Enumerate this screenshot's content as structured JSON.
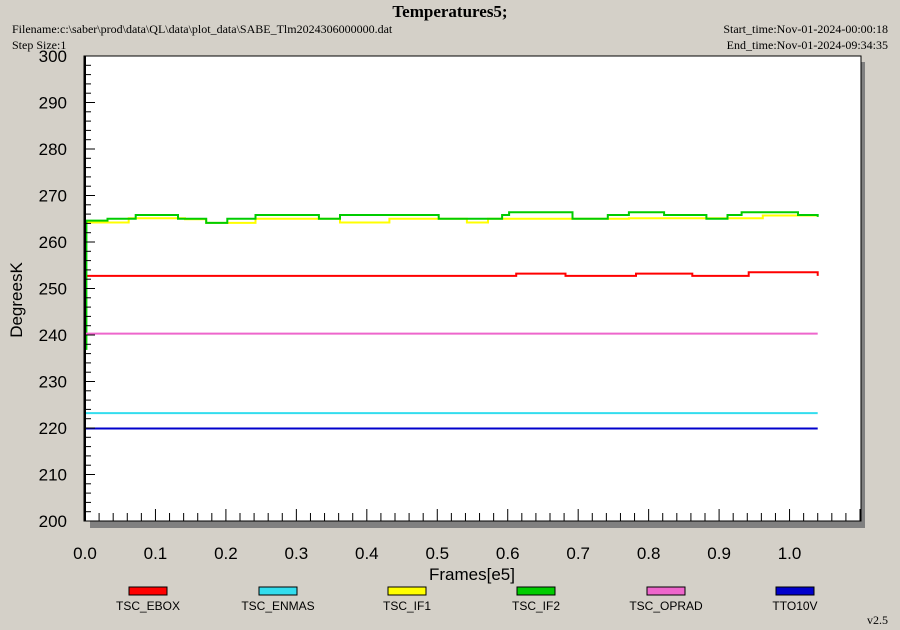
{
  "header": {
    "title": "Temperatures5;",
    "filename": "Filename:c:\\saber\\prod\\data\\QL\\data\\plot_data\\SABE_Tlm2024306000000.dat",
    "step_size": "Step Size:1",
    "start_time": "Start_time:Nov-01-2024-00:00:18",
    "end_time": "End_time:Nov-01-2024-09:34:35"
  },
  "version": "v2.5",
  "chart_data": {
    "type": "line",
    "title": "Temperatures5;",
    "xlabel": "Frames[e5]",
    "ylabel": "DegreesK",
    "xlim": [
      0.0,
      1.1
    ],
    "ylim": [
      200,
      300
    ],
    "xticks": [
      "0.0",
      "0.1",
      "0.2",
      "0.3",
      "0.4",
      "0.5",
      "0.6",
      "0.7",
      "0.8",
      "0.9",
      "1.0"
    ],
    "yticks": [
      "200",
      "210",
      "220",
      "230",
      "240",
      "250",
      "260",
      "270",
      "280",
      "290",
      "300"
    ],
    "grid": false,
    "legend_position": "bottom",
    "series": [
      {
        "name": "TSC_EBOX",
        "color": "#ff0000",
        "x": [
          0.0,
          0.61,
          0.612,
          0.68,
          0.682,
          0.78,
          0.782,
          0.86,
          0.862,
          0.94,
          0.942,
          1.04
        ],
        "y": [
          252.7,
          252.7,
          253.2,
          253.2,
          252.7,
          252.7,
          253.2,
          253.2,
          252.7,
          252.7,
          253.5,
          252.7
        ]
      },
      {
        "name": "TSC_ENMAS",
        "color": "#33ddee",
        "x": [
          0.0,
          1.04
        ],
        "y": [
          223.2,
          223.2
        ]
      },
      {
        "name": "TSC_IF1",
        "color": "#ffff00",
        "x": [
          0.0,
          0.06,
          0.062,
          0.14,
          0.142,
          0.17,
          0.172,
          0.24,
          0.242,
          0.36,
          0.362,
          0.43,
          0.432,
          0.54,
          0.542,
          0.57,
          0.572,
          0.77,
          0.772,
          0.96,
          0.962,
          1.04
        ],
        "y": [
          264.2,
          264.2,
          265.1,
          265.1,
          264.9,
          264.9,
          264.1,
          264.1,
          265.0,
          265.0,
          264.2,
          264.2,
          265.0,
          265.0,
          264.2,
          264.2,
          265.0,
          265.0,
          265.1,
          265.1,
          265.7,
          265.7
        ]
      },
      {
        "name": "TSC_IF2",
        "color": "#00cc00",
        "x": [
          0.0,
          0.002,
          0.018,
          0.03,
          0.032,
          0.07,
          0.072,
          0.13,
          0.132,
          0.17,
          0.172,
          0.2,
          0.202,
          0.24,
          0.242,
          0.33,
          0.332,
          0.36,
          0.362,
          0.5,
          0.502,
          0.59,
          0.592,
          0.6,
          0.602,
          0.69,
          0.692,
          0.74,
          0.742,
          0.77,
          0.772,
          0.82,
          0.822,
          0.88,
          0.882,
          0.91,
          0.912,
          0.93,
          0.932,
          1.01,
          1.012,
          1.04
        ],
        "y": [
          237.0,
          264.6,
          264.6,
          264.6,
          265.0,
          265.0,
          265.8,
          265.8,
          265.0,
          265.0,
          264.1,
          264.1,
          265.0,
          265.0,
          265.8,
          265.8,
          265.0,
          265.0,
          265.8,
          265.8,
          265.0,
          265.0,
          265.8,
          265.8,
          266.4,
          266.4,
          265.0,
          265.0,
          265.8,
          265.8,
          266.4,
          266.4,
          265.8,
          265.8,
          265.0,
          265.0,
          265.8,
          265.8,
          266.4,
          266.4,
          265.8,
          265.4
        ]
      },
      {
        "name": "TSC_OPRAD",
        "color": "#ee66cc",
        "x": [
          0.0,
          1.04
        ],
        "y": [
          240.3,
          240.3
        ]
      },
      {
        "name": "TTO10V",
        "color": "#0000cc",
        "x": [
          0.0,
          1.04
        ],
        "y": [
          219.9,
          219.9
        ]
      }
    ]
  }
}
